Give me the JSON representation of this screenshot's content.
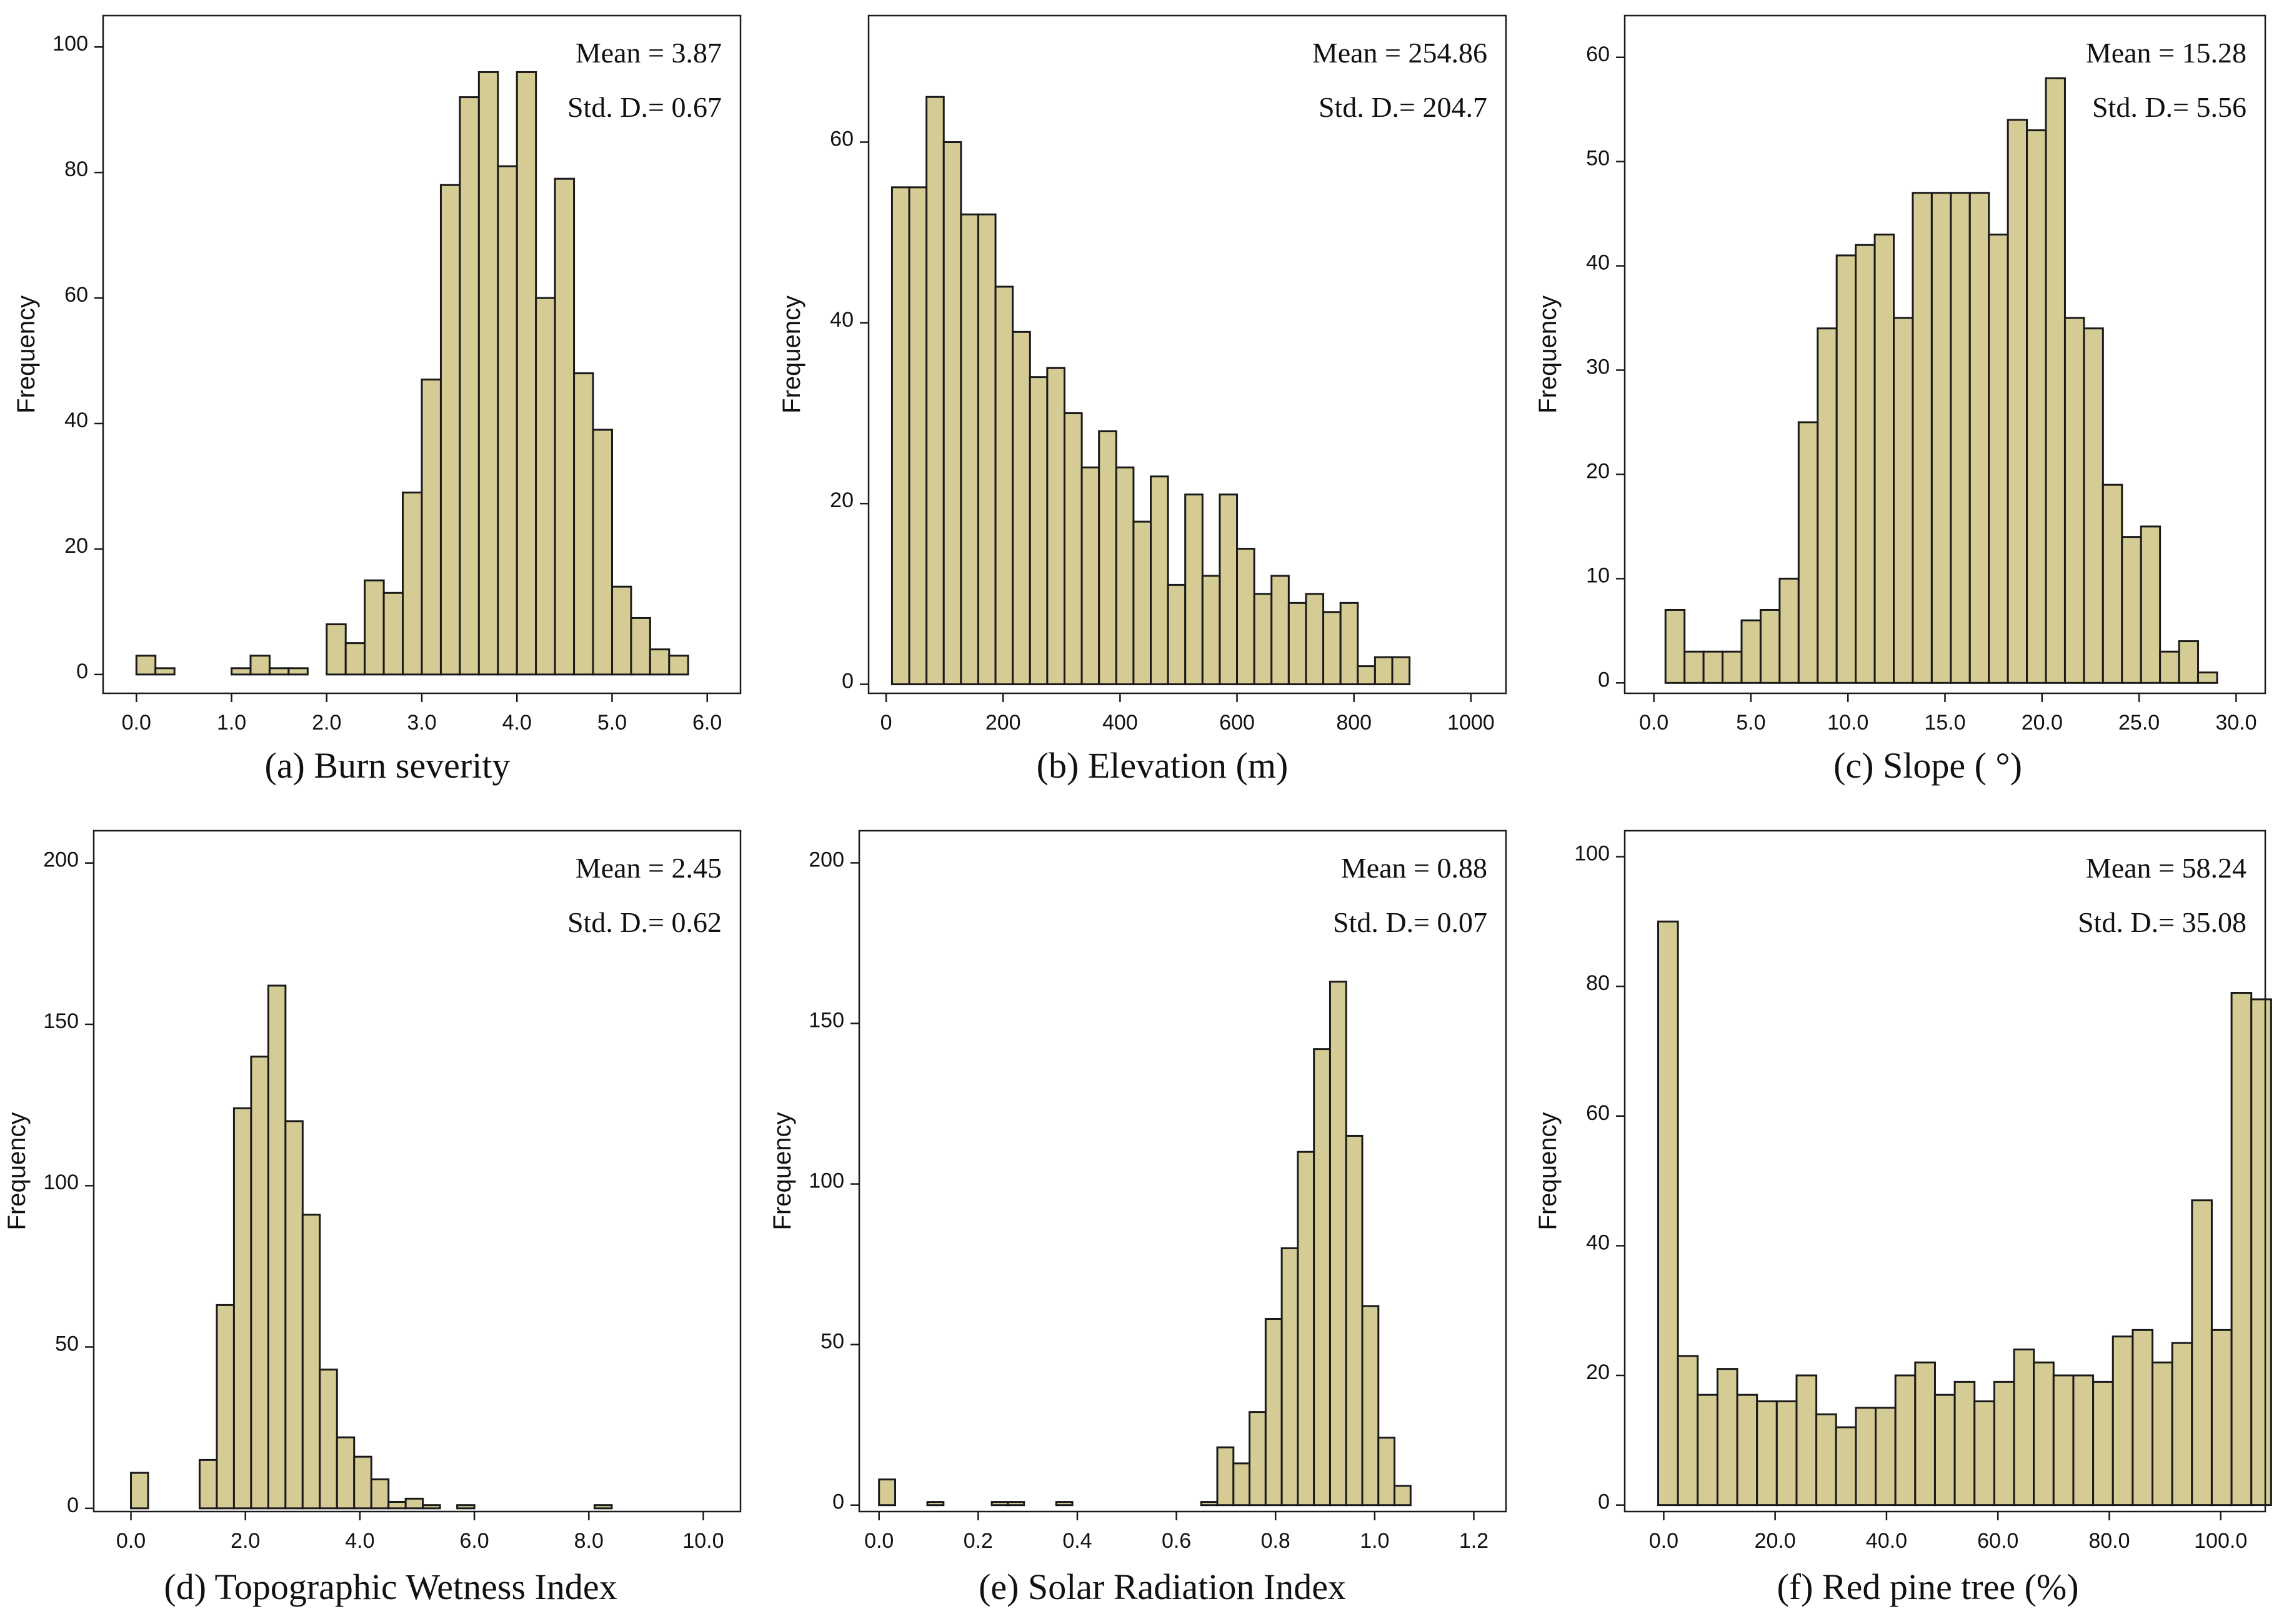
{
  "colors": {
    "bar_fill": "#d4cc94",
    "bar_stroke": "#1a1a1a",
    "frame": "#1a1a1a",
    "background": "#ffffff"
  },
  "chart_data": [
    {
      "id": "a",
      "type": "bar",
      "title": "(a) Burn severity",
      "ylabel": "Frequency",
      "xlabel": "",
      "xlim": [
        -0.35,
        6.35
      ],
      "ylim": [
        -3,
        105
      ],
      "xticks": [
        0,
        1,
        2,
        3,
        4,
        5,
        6
      ],
      "xtick_labels": [
        "0.0",
        "1.0",
        "2.0",
        "3.0",
        "4.0",
        "5.0",
        "6.0"
      ],
      "yticks": [
        0,
        20,
        40,
        60,
        80,
        100
      ],
      "ytick_labels": [
        "0",
        "20",
        "40",
        "60",
        "80",
        "100"
      ],
      "bin_start": 0.0,
      "bin_width": 0.2,
      "values": [
        3,
        1,
        0,
        0,
        0,
        1,
        3,
        1,
        1,
        0,
        8,
        5,
        15,
        13,
        29,
        47,
        78,
        92,
        96,
        81,
        96,
        60,
        79,
        48,
        39,
        14,
        9,
        4,
        3
      ],
      "stats": {
        "mean": "Mean = 3.87",
        "std": "Std. D.= 0.67"
      }
    },
    {
      "id": "b",
      "type": "bar",
      "title": "(b) Elevation (m)",
      "ylabel": "Frequency",
      "xlabel": "",
      "xlim": [
        -30,
        1060
      ],
      "ylim": [
        -1,
        74
      ],
      "xticks": [
        0,
        200,
        400,
        600,
        800,
        1000
      ],
      "xtick_labels": [
        "0",
        "200",
        "400",
        "600",
        "800",
        "1000"
      ],
      "yticks": [
        0,
        20,
        40,
        60
      ],
      "ytick_labels": [
        "0",
        "20",
        "40",
        "60"
      ],
      "bin_start": 10,
      "bin_width": 29.5,
      "values": [
        55,
        55,
        65,
        60,
        52,
        52,
        44,
        39,
        34,
        35,
        30,
        24,
        28,
        24,
        18,
        23,
        11,
        21,
        12,
        21,
        15,
        10,
        12,
        9,
        10,
        8,
        9,
        2,
        3,
        3
      ],
      "stats": {
        "mean": "Mean = 254.86",
        "std": "Std. D.= 204.7"
      }
    },
    {
      "id": "c",
      "type": "bar",
      "title": "(c) Slope ( °)",
      "ylabel": "Frequency",
      "xlabel": "",
      "xlim": [
        -1.5,
        31.5
      ],
      "ylim": [
        -1,
        64
      ],
      "xticks": [
        0,
        5,
        10,
        15,
        20,
        25,
        30
      ],
      "xtick_labels": [
        "0.0",
        "5.0",
        "10.0",
        "15.0",
        "20.0",
        "25.0",
        "30.0"
      ],
      "yticks": [
        0,
        10,
        20,
        30,
        40,
        50,
        60
      ],
      "ytick_labels": [
        "0",
        "10",
        "20",
        "30",
        "40",
        "50",
        "60"
      ],
      "bin_start": 0.6,
      "bin_width": 0.98,
      "values": [
        7,
        3,
        3,
        3,
        6,
        7,
        10,
        25,
        34,
        41,
        42,
        43,
        35,
        47,
        47,
        47,
        47,
        43,
        54,
        53,
        58,
        35,
        34,
        19,
        14,
        15,
        3,
        4,
        1
      ],
      "stats": {
        "mean": "Mean = 15.28",
        "std": "Std. D.= 5.56"
      }
    },
    {
      "id": "d",
      "type": "bar",
      "title": "(d) Topographic Wetness Index",
      "ylabel": "Frequency",
      "xlabel": "",
      "xlim": [
        -0.65,
        10.65
      ],
      "ylim": [
        -1,
        210
      ],
      "xticks": [
        0,
        2,
        4,
        6,
        8,
        10
      ],
      "xtick_labels": [
        "0.0",
        "2.0",
        "4.0",
        "6.0",
        "8.0",
        "10.0"
      ],
      "yticks": [
        0,
        50,
        100,
        150,
        200
      ],
      "ytick_labels": [
        "0",
        "50",
        "100",
        "150",
        "200"
      ],
      "bin_start": 0.0,
      "bin_width": 0.3,
      "values": [
        11,
        0,
        0,
        0,
        15,
        63,
        124,
        140,
        162,
        120,
        91,
        43,
        22,
        16,
        9,
        2,
        3,
        1,
        0,
        1,
        0,
        0,
        0,
        0,
        0,
        0,
        0,
        1
      ],
      "stats": {
        "mean": "Mean = 2.45",
        "std": "Std. D.= 0.62"
      }
    },
    {
      "id": "e",
      "type": "bar",
      "title": "(e) Solar Radiation Index",
      "ylabel": "Frequency",
      "xlabel": "",
      "xlim": [
        -0.04,
        1.265
      ],
      "ylim": [
        -2,
        210
      ],
      "xticks": [
        0,
        0.2,
        0.4,
        0.6,
        0.8,
        1.0,
        1.2
      ],
      "xtick_labels": [
        "0.0",
        "0.2",
        "0.4",
        "0.6",
        "0.8",
        "1.0",
        "1.2"
      ],
      "yticks": [
        0,
        50,
        100,
        150,
        200
      ],
      "ytick_labels": [
        "0",
        "50",
        "100",
        "150",
        "200"
      ],
      "bin_start": 0.0,
      "bin_width": 0.0325,
      "values": [
        8,
        0,
        0,
        1,
        0,
        0,
        0,
        1,
        1,
        0,
        0,
        1,
        0,
        0,
        0,
        0,
        0,
        0,
        0,
        0,
        1,
        18,
        13,
        29,
        58,
        80,
        110,
        142,
        163,
        115,
        62,
        21,
        6
      ],
      "stats": {
        "mean": "Mean = 0.88",
        "std": "Std. D.= 0.07"
      }
    },
    {
      "id": "f",
      "type": "bar",
      "title": "(f) Red pine tree (%)",
      "ylabel": "Frequency",
      "xlabel": "",
      "xlim": [
        -7,
        108
      ],
      "ylim": [
        -1,
        104
      ],
      "xticks": [
        0,
        20,
        40,
        60,
        80,
        100
      ],
      "xtick_labels": [
        "0.0",
        "20.0",
        "40.0",
        "60.0",
        "80.0",
        "100.0"
      ],
      "yticks": [
        0,
        20,
        40,
        60,
        80,
        100
      ],
      "ytick_labels": [
        "0",
        "20",
        "40",
        "60",
        "80",
        "100"
      ],
      "bin_start": -1,
      "bin_width": 3.55,
      "values": [
        90,
        23,
        17,
        21,
        17,
        16,
        16,
        20,
        14,
        12,
        15,
        15,
        20,
        22,
        17,
        19,
        16,
        19,
        24,
        22,
        20,
        20,
        19,
        26,
        27,
        22,
        25,
        47,
        27,
        79,
        78
      ],
      "stats": {
        "mean": "Mean = 58.24",
        "std": "Std. D.= 35.08"
      }
    }
  ]
}
